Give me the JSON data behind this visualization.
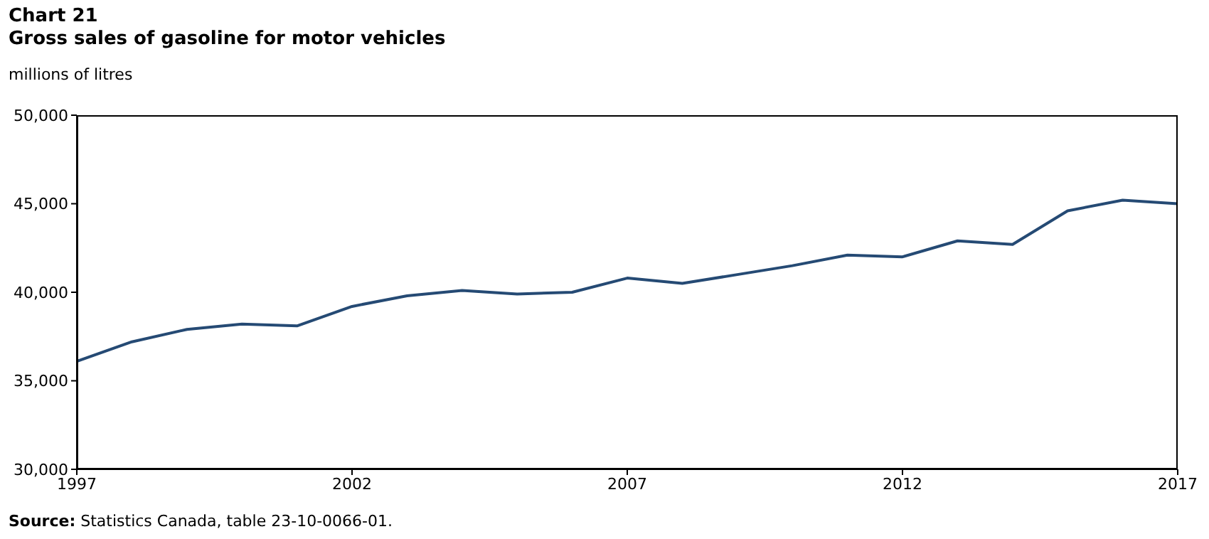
{
  "chart_data": {
    "type": "line",
    "title": "Chart 21",
    "subtitle": "Gross sales of gasoline for motor vehicles",
    "ylabel": "millions of litres",
    "x": [
      1997,
      1998,
      1999,
      2000,
      2001,
      2002,
      2003,
      2004,
      2005,
      2006,
      2007,
      2008,
      2009,
      2010,
      2011,
      2012,
      2013,
      2014,
      2015,
      2016,
      2017
    ],
    "series": [
      {
        "color": "#254a74",
        "values": [
          36100,
          37200,
          37900,
          38200,
          38100,
          39200,
          39800,
          40100,
          39900,
          40000,
          40800,
          40500,
          41000,
          41500,
          42100,
          42000,
          42900,
          42700,
          44600,
          45200,
          45000
        ]
      }
    ],
    "xlim": [
      1997,
      2017
    ],
    "xticks": [
      1997,
      2002,
      2007,
      2012,
      2017
    ],
    "ylim": [
      30000,
      50000
    ],
    "yticks": [
      {
        "value": 30000,
        "label": "30,000"
      },
      {
        "value": 35000,
        "label": "35,000"
      },
      {
        "value": 40000,
        "label": "40,000"
      },
      {
        "value": 45000,
        "label": "45,000"
      },
      {
        "value": 50000,
        "label": "50,000"
      }
    ],
    "grid": false,
    "legend": false,
    "marker": "none",
    "line_style": "solid",
    "annotations": [
      "Source: Statistics Canada, table 23-10-0066-01."
    ]
  }
}
